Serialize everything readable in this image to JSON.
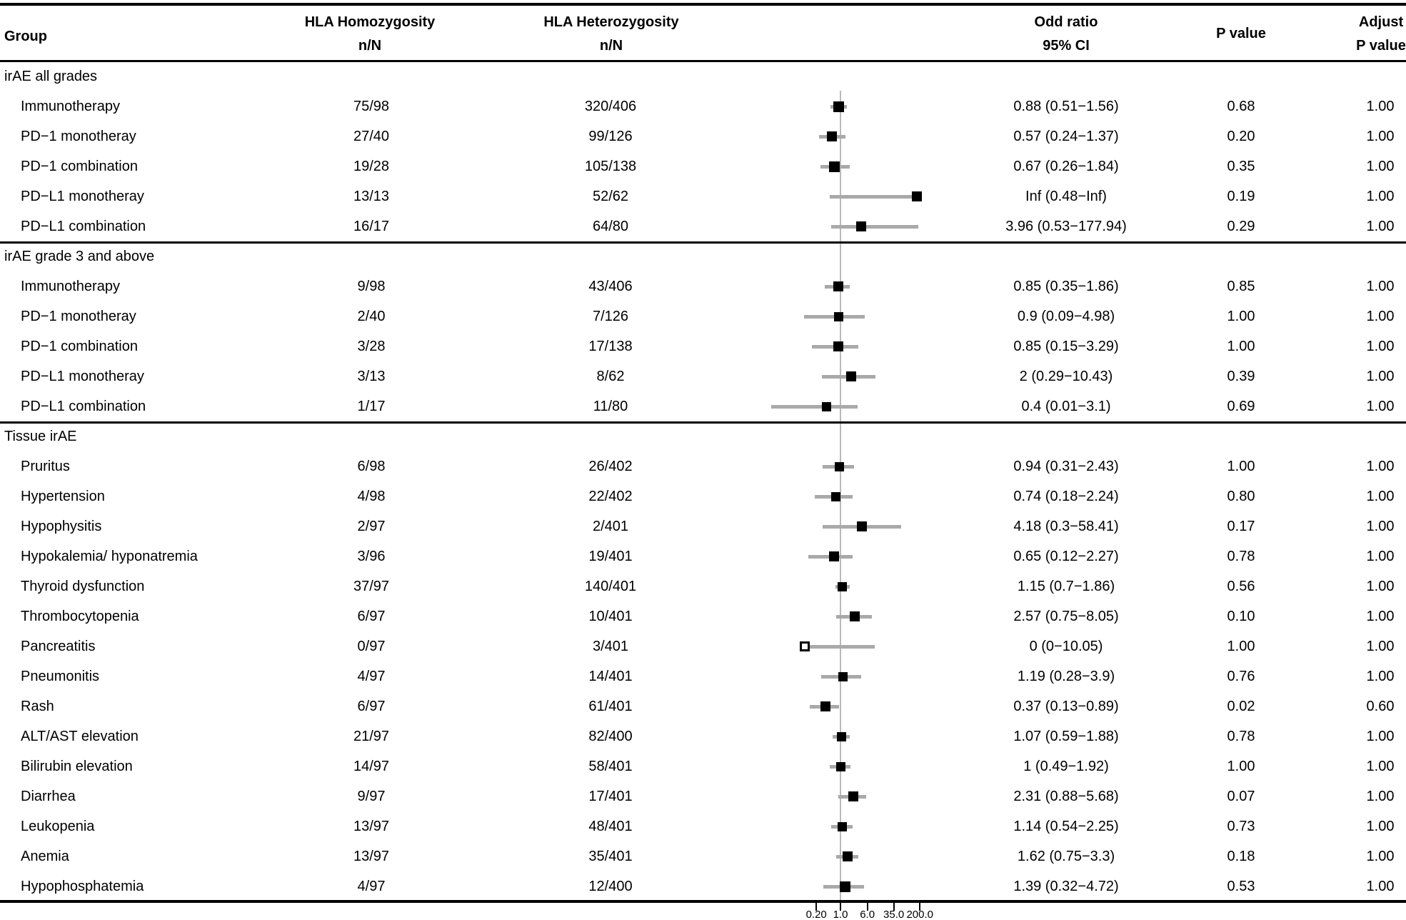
{
  "header": {
    "group": "Group",
    "homo_line1": "HLA Homozygosity",
    "homo_line2": "n/N",
    "hetero_line1": "HLA Heterozygosity",
    "hetero_line2": "n/N",
    "or_line1": "Odd ratio",
    "or_line2": "95% CI",
    "p": "P value",
    "adj_line1": "Adjust",
    "adj_line2": "P value"
  },
  "chart_data": {
    "type": "scatter",
    "subtype": "forest-plot",
    "x_axis": {
      "scale": "log",
      "tick_values": [
        0.2,
        1.0,
        6.0,
        35.0,
        200.0
      ],
      "tick_labels": [
        "0.20",
        "1.0",
        "6.0",
        "35.0",
        "200.0"
      ],
      "reference_line": 1
    },
    "marker_colors": {
      "filled": "#000000",
      "open_fill": "#ffffff",
      "ci": "#a9a9a9",
      "reference": "#b9b9b9"
    },
    "sections": [
      {
        "label": "irAE all grades",
        "rows": [
          {
            "group": "Immunotherapy",
            "homo": "75/98",
            "hetero": "320/406",
            "or_text": "0.88 (0.51−1.56)",
            "p": "0.68",
            "adj": "1.00",
            "est": 0.88,
            "lo": 0.51,
            "hi": 1.56,
            "ms": 15,
            "open": false
          },
          {
            "group": "PD−1 monotheray",
            "homo": "27/40",
            "hetero": "99/126",
            "or_text": "0.57 (0.24−1.37)",
            "p": "0.20",
            "adj": "1.00",
            "est": 0.57,
            "lo": 0.24,
            "hi": 1.37,
            "ms": 14,
            "open": false
          },
          {
            "group": "PD−1 combination",
            "homo": "19/28",
            "hetero": "105/138",
            "or_text": "0.67 (0.26−1.84)",
            "p": "0.35",
            "adj": "1.00",
            "est": 0.67,
            "lo": 0.26,
            "hi": 1.84,
            "ms": 15,
            "open": false
          },
          {
            "group": "PD−L1 monotheray",
            "homo": "13/13",
            "hetero": "52/62",
            "or_text": "Inf (0.48−Inf)",
            "p": "0.19",
            "adj": "1.00",
            "est": "Inf",
            "lo": 0.48,
            "hi": "Inf",
            "plot_est": 163,
            "plot_hi": 163,
            "ms": 14,
            "open": false
          },
          {
            "group": "PD−L1 combination",
            "homo": "16/17",
            "hetero": "64/80",
            "or_text": "3.96 (0.53−177.94)",
            "p": "0.29",
            "adj": "1.00",
            "est": 3.96,
            "lo": 0.53,
            "hi": 177.94,
            "ms": 14,
            "open": false
          }
        ]
      },
      {
        "label": "irAE grade 3 and above",
        "rows": [
          {
            "group": "Immunotherapy",
            "homo": "9/98",
            "hetero": "43/406",
            "or_text": "0.85 (0.35−1.86)",
            "p": "0.85",
            "adj": "1.00",
            "est": 0.85,
            "lo": 0.35,
            "hi": 1.86,
            "ms": 14,
            "open": false
          },
          {
            "group": "PD−1 monotheray",
            "homo": "2/40",
            "hetero": "7/126",
            "or_text": "0.9 (0.09−4.98)",
            "p": "1.00",
            "adj": "1.00",
            "est": 0.9,
            "lo": 0.09,
            "hi": 4.98,
            "ms": 13,
            "open": false
          },
          {
            "group": "PD−1 combination",
            "homo": "3/28",
            "hetero": "17/138",
            "or_text": "0.85 (0.15−3.29)",
            "p": "1.00",
            "adj": "1.00",
            "est": 0.85,
            "lo": 0.15,
            "hi": 3.29,
            "ms": 14,
            "open": false
          },
          {
            "group": "PD−L1 monotheray",
            "homo": "3/13",
            "hetero": "8/62",
            "or_text": "2 (0.29−10.43)",
            "p": "0.39",
            "adj": "1.00",
            "est": 2,
            "lo": 0.29,
            "hi": 10.43,
            "ms": 14,
            "open": false
          },
          {
            "group": "PD−L1 combination",
            "homo": "1/17",
            "hetero": "11/80",
            "or_text": "0.4 (0.01−3.1)",
            "p": "0.69",
            "adj": "1.00",
            "est": 0.4,
            "lo": 0.01,
            "hi": 3.1,
            "ms": 13,
            "open": false
          }
        ]
      },
      {
        "label": "Tissue irAE",
        "rows": [
          {
            "group": "Pruritus",
            "homo": "6/98",
            "hetero": "26/402",
            "or_text": "0.94 (0.31−2.43)",
            "p": "1.00",
            "adj": "1.00",
            "est": 0.94,
            "lo": 0.31,
            "hi": 2.43,
            "ms": 13,
            "open": false
          },
          {
            "group": "Hypertension",
            "homo": "4/98",
            "hetero": "22/402",
            "or_text": "0.74 (0.18−2.24)",
            "p": "0.80",
            "adj": "1.00",
            "est": 0.74,
            "lo": 0.18,
            "hi": 2.24,
            "ms": 13,
            "open": false
          },
          {
            "group": "Hypophysitis",
            "homo": "2/97",
            "hetero": "2/401",
            "or_text": "4.18 (0.3−58.41)",
            "p": "0.17",
            "adj": "1.00",
            "est": 4.18,
            "lo": 0.3,
            "hi": 58.41,
            "ms": 14,
            "open": false
          },
          {
            "group": "Hypokalemia/ hyponatremia",
            "homo": "3/96",
            "hetero": "19/401",
            "or_text": "0.65 (0.12−2.27)",
            "p": "0.78",
            "adj": "1.00",
            "est": 0.65,
            "lo": 0.12,
            "hi": 2.27,
            "ms": 14,
            "open": false
          },
          {
            "group": "Thyroid dysfunction",
            "homo": "37/97",
            "hetero": "140/401",
            "or_text": "1.15 (0.7−1.86)",
            "p": "0.56",
            "adj": "1.00",
            "est": 1.15,
            "lo": 0.7,
            "hi": 1.86,
            "ms": 13,
            "open": false
          },
          {
            "group": "Thrombocytopenia",
            "homo": "6/97",
            "hetero": "10/401",
            "or_text": "2.57 (0.75−8.05)",
            "p": "0.10",
            "adj": "1.00",
            "est": 2.57,
            "lo": 0.75,
            "hi": 8.05,
            "ms": 14,
            "open": false
          },
          {
            "group": "Pancreatitis",
            "homo": "0/97",
            "hetero": "3/401",
            "or_text": "0 (0−10.05)",
            "p": "1.00",
            "adj": "1.00",
            "est": 0,
            "lo": 0,
            "hi": 10.05,
            "plot_est": 0.092,
            "plot_lo": 0.092,
            "ms": 14,
            "open": true
          },
          {
            "group": "Pneumonitis",
            "homo": "4/97",
            "hetero": "14/401",
            "or_text": "1.19 (0.28−3.9)",
            "p": "0.76",
            "adj": "1.00",
            "est": 1.19,
            "lo": 0.28,
            "hi": 3.9,
            "ms": 13,
            "open": false
          },
          {
            "group": "Rash",
            "homo": "6/97",
            "hetero": "61/401",
            "or_text": "0.37 (0.13−0.89)",
            "p": "0.02",
            "adj": "0.60",
            "est": 0.37,
            "lo": 0.13,
            "hi": 0.89,
            "ms": 14,
            "open": false
          },
          {
            "group": "ALT/AST elevation",
            "homo": "21/97",
            "hetero": "82/400",
            "or_text": "1.07 (0.59−1.88)",
            "p": "0.78",
            "adj": "1.00",
            "est": 1.07,
            "lo": 0.59,
            "hi": 1.88,
            "ms": 13,
            "open": false
          },
          {
            "group": "Bilirubin elevation",
            "homo": "14/97",
            "hetero": "58/401",
            "or_text": "1 (0.49−1.92)",
            "p": "1.00",
            "adj": "1.00",
            "est": 1,
            "lo": 0.49,
            "hi": 1.92,
            "ms": 13,
            "open": false
          },
          {
            "group": "Diarrhea",
            "homo": "9/97",
            "hetero": "17/401",
            "or_text": "2.31 (0.88−5.68)",
            "p": "0.07",
            "adj": "1.00",
            "est": 2.31,
            "lo": 0.88,
            "hi": 5.68,
            "ms": 14,
            "open": false
          },
          {
            "group": "Leukopenia",
            "homo": "13/97",
            "hetero": "48/401",
            "or_text": "1.14 (0.54−2.25)",
            "p": "0.73",
            "adj": "1.00",
            "est": 1.14,
            "lo": 0.54,
            "hi": 2.25,
            "ms": 13,
            "open": false
          },
          {
            "group": "Anemia",
            "homo": "13/97",
            "hetero": "35/401",
            "or_text": "1.62 (0.75−3.3)",
            "p": "0.18",
            "adj": "1.00",
            "est": 1.62,
            "lo": 0.75,
            "hi": 3.3,
            "ms": 14,
            "open": false
          },
          {
            "group": "Hypophosphatemia",
            "homo": "4/97",
            "hetero": "12/400",
            "or_text": "1.39 (0.32−4.72)",
            "p": "0.53",
            "adj": "1.00",
            "est": 1.39,
            "lo": 0.32,
            "hi": 4.72,
            "ms": 15,
            "open": false
          }
        ]
      }
    ]
  }
}
